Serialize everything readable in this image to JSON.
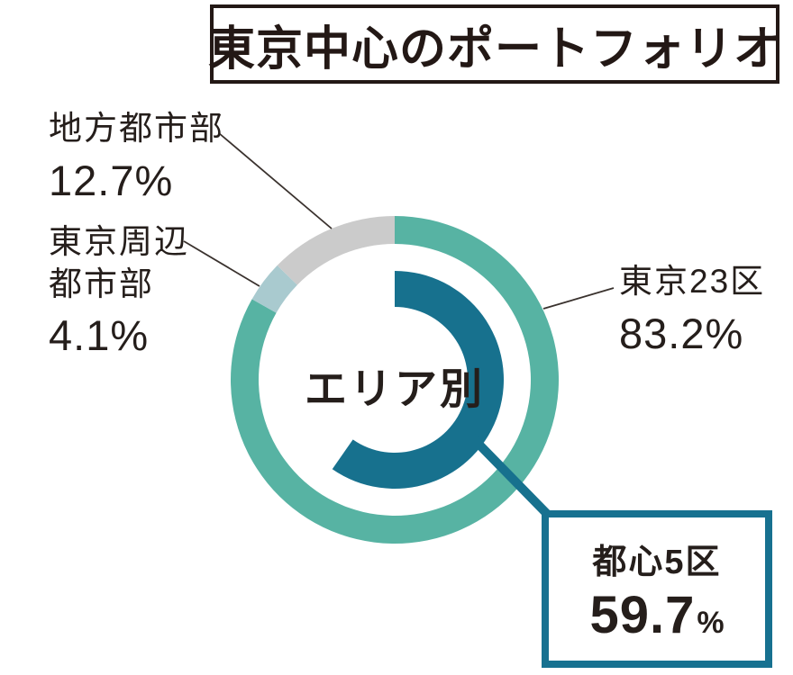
{
  "title": "東京中心のポートフォリオ",
  "center_label": "エリア別",
  "colors": {
    "teal": "#57b3a3",
    "pale_blue": "#a9cacf",
    "gray": "#cbcbcb",
    "dark_teal": "#17718e",
    "ink": "#251e1b",
    "leader_line": "#3a322e"
  },
  "chart_data": {
    "type": "donut",
    "title": "東京中心のポートフォリオ",
    "center_label": "エリア別",
    "unit": "%",
    "start": "top",
    "direction": "clockwise",
    "outer_ring": {
      "segments": [
        {
          "label": "東京23区",
          "value": 83.2,
          "display": "83.2%",
          "color_key": "teal"
        },
        {
          "label": "東京周辺都市部",
          "value": 4.1,
          "display": "4.1%",
          "color_key": "pale_blue"
        },
        {
          "label": "地方都市部",
          "value": 12.7,
          "display": "12.7%",
          "color_key": "gray"
        }
      ]
    },
    "inner_arc": {
      "label": "都心5区",
      "value": 59.7,
      "display": "59.7",
      "unit": "%",
      "color_key": "dark_teal"
    }
  },
  "labels": {
    "regional": {
      "line1": "地方都市部",
      "pct": "12.7%"
    },
    "surrounding": {
      "line1": "東京周辺",
      "line2": "都市部",
      "pct": "4.1%"
    },
    "tokyo23": {
      "line1": "東京23区",
      "pct": "83.2%"
    },
    "callout": {
      "name": "都心5区",
      "value": "59.7",
      "unit": "%"
    }
  }
}
